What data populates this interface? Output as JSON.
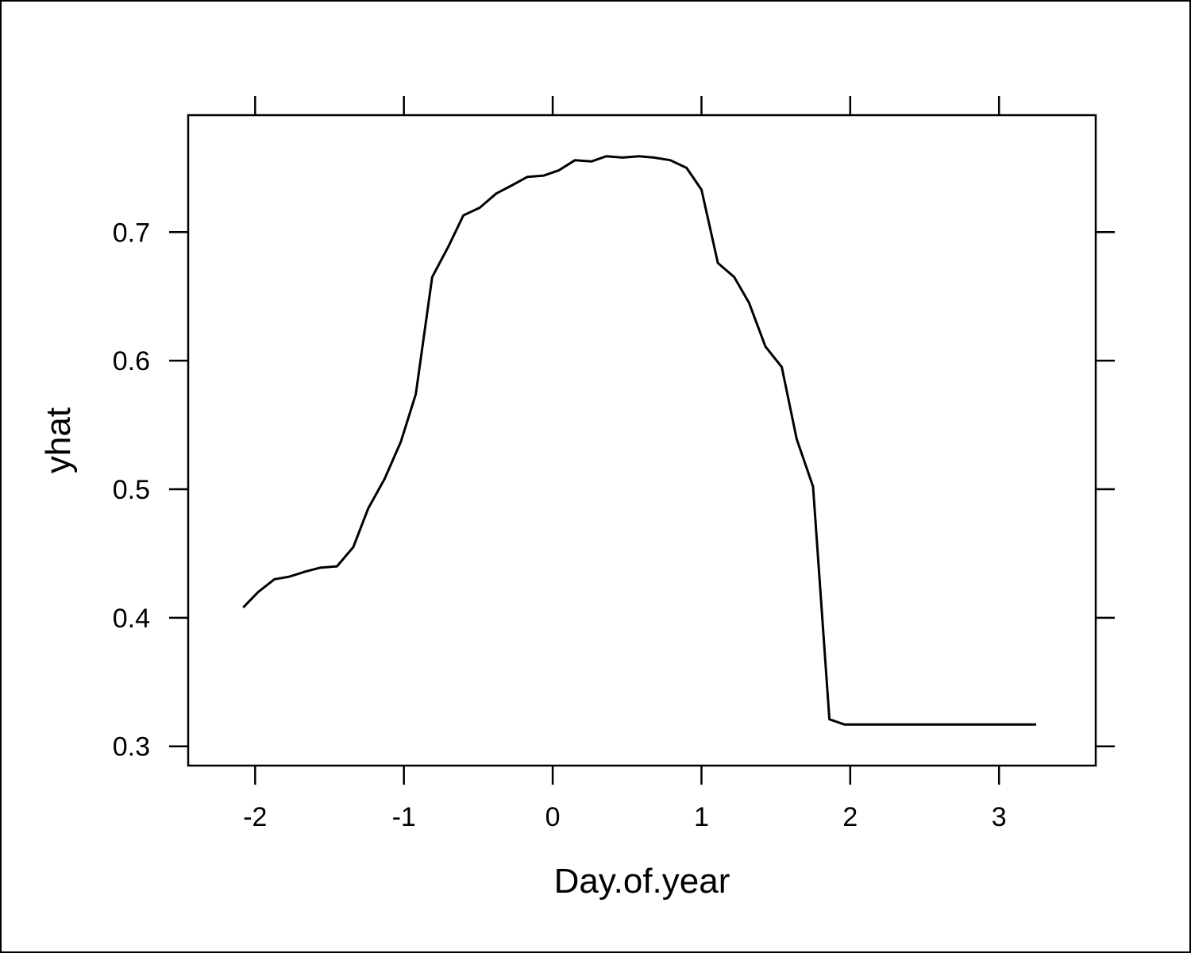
{
  "chart_data": {
    "type": "line",
    "title": "",
    "xlabel": "Day.of.year",
    "ylabel": "yhat",
    "xlim": [
      -2.45,
      3.65
    ],
    "ylim": [
      0.285,
      0.791
    ],
    "x_ticks": [
      -2,
      -1,
      0,
      1,
      2,
      3
    ],
    "x_tick_labels": [
      "-2",
      "-1",
      "0",
      "1",
      "2",
      "3"
    ],
    "y_ticks": [
      0.3,
      0.4,
      0.5,
      0.6,
      0.7
    ],
    "y_tick_labels": [
      "0.3",
      "0.4",
      "0.5",
      "0.6",
      "0.7"
    ],
    "grid": false,
    "legend": "none",
    "line_color": "#000000",
    "series": [
      {
        "x": [
          -2.08,
          -1.98,
          -1.87,
          -1.77,
          -1.66,
          -1.56,
          -1.45,
          -1.34,
          -1.24,
          -1.13,
          -1.02,
          -0.92,
          -0.81,
          -0.7,
          -0.6,
          -0.49,
          -0.38,
          -0.28,
          -0.17,
          -0.06,
          0.04,
          0.15,
          0.26,
          0.36,
          0.47,
          0.58,
          0.68,
          0.79,
          0.9,
          1.0,
          1.11,
          1.22,
          1.32,
          1.43,
          1.54,
          1.64,
          1.75,
          1.86,
          1.96,
          2.07,
          2.18,
          2.28,
          2.5,
          3.0,
          3.25
        ],
        "y": [
          0.408,
          0.42,
          0.43,
          0.432,
          0.436,
          0.439,
          0.44,
          0.455,
          0.485,
          0.508,
          0.537,
          0.574,
          0.665,
          0.689,
          0.713,
          0.719,
          0.73,
          0.736,
          0.743,
          0.744,
          0.748,
          0.756,
          0.755,
          0.759,
          0.758,
          0.759,
          0.758,
          0.756,
          0.75,
          0.733,
          0.676,
          0.665,
          0.645,
          0.611,
          0.595,
          0.539,
          0.502,
          0.321,
          0.317,
          0.317,
          0.317,
          0.317,
          0.317,
          0.317,
          0.317
        ]
      }
    ]
  }
}
